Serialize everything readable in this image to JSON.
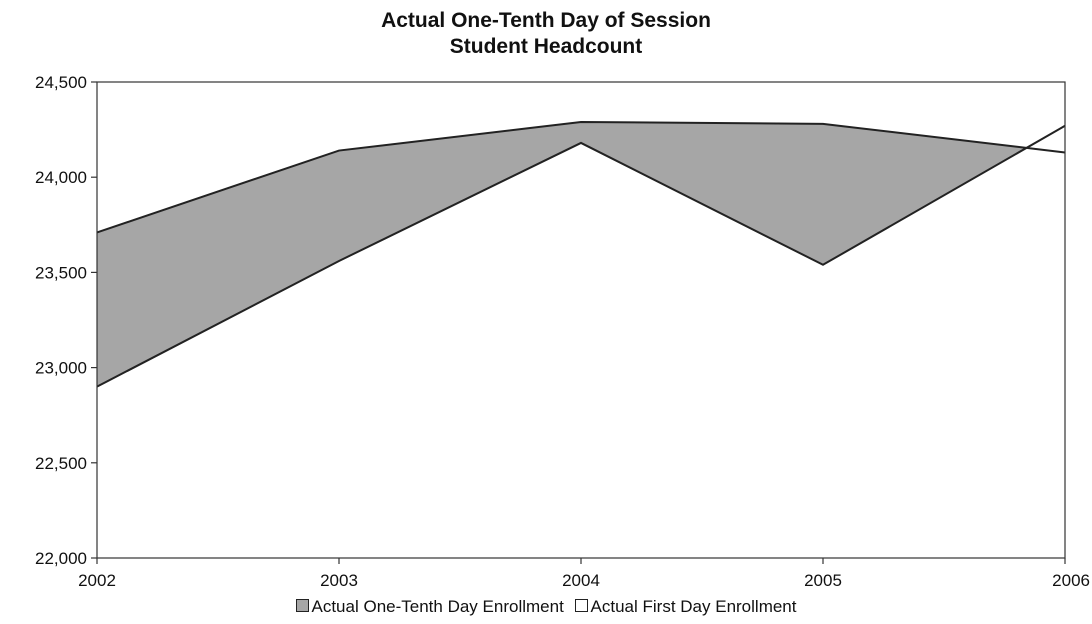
{
  "chart_data": {
    "type": "area",
    "title_lines": [
      "Actual One-Tenth Day of Session",
      "Student Headcount"
    ],
    "x": [
      "2002",
      "2003",
      "2004",
      "2005",
      "2006"
    ],
    "ylim": [
      22000,
      24500
    ],
    "yticks": [
      22000,
      22500,
      23000,
      23500,
      24000,
      24500
    ],
    "ytick_labels": [
      "22,000",
      "22,500",
      "23,000",
      "23,500",
      "24,000",
      "24,500"
    ],
    "grid": false,
    "legend_position": "bottom",
    "series": [
      {
        "name": "Actual One-Tenth Day Enrollment",
        "values": [
          23710,
          24140,
          24290,
          24280,
          24130
        ],
        "color": "#a6a6a6"
      },
      {
        "name": "Actual First Day Enrollment",
        "values": [
          22900,
          23560,
          24180,
          23540,
          24270
        ],
        "color": "#ffffff"
      }
    ]
  }
}
